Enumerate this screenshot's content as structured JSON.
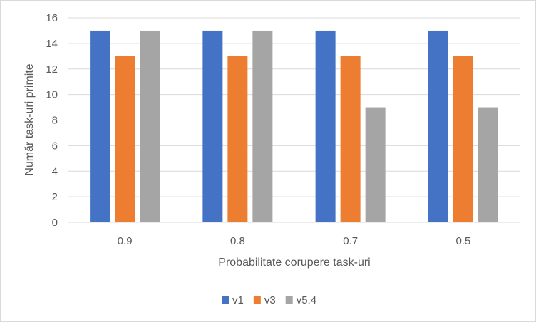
{
  "chart_data": {
    "type": "bar",
    "title": "",
    "xlabel": "Probabilitate corupere task-uri",
    "ylabel": "Număr task-uri primite",
    "categories": [
      "0.9",
      "0.8",
      "0.7",
      "0.5"
    ],
    "series": [
      {
        "name": "v1",
        "color": "#4472C4",
        "values": [
          15,
          15,
          15,
          15
        ]
      },
      {
        "name": "v3",
        "color": "#ED7D31",
        "values": [
          13,
          13,
          13,
          13
        ]
      },
      {
        "name": "v5.4",
        "color": "#A5A5A5",
        "values": [
          15,
          15,
          9,
          9
        ]
      }
    ],
    "ylim": [
      0,
      16
    ],
    "yticks": [
      0,
      2,
      4,
      6,
      8,
      10,
      12,
      14,
      16
    ],
    "grid": true,
    "legend_position": "bottom"
  }
}
